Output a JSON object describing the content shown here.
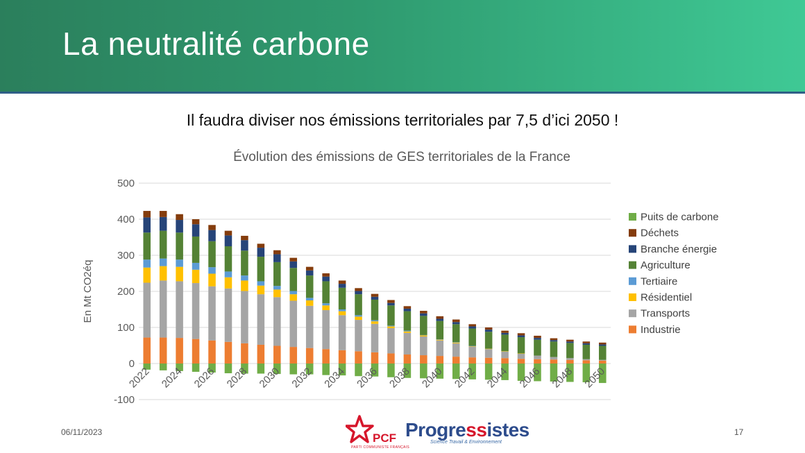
{
  "slide": {
    "title": "La neutralité carbone",
    "subtitle": "Il faudra diviser nos émissions territoriales par 7,5 d’ici 2050 !",
    "date": "06/11/2023",
    "page": "17"
  },
  "logos": {
    "pcf": "PCF",
    "pcf_sub": "PARTI COMMUNISTE FRANÇAIS",
    "progressistes_a": "Progre",
    "progressistes_b": "ss",
    "progressistes_c": "istes",
    "progressistes_sub": "Science Travail & Environnement"
  },
  "chart_data": {
    "type": "bar",
    "stacked": true,
    "title": "Évolution des émissions de GES territoriales de la France",
    "ylabel": "En Mt CO2éq",
    "xlabel": "",
    "ylim": [
      -100,
      500
    ],
    "yticks": [
      -100,
      0,
      100,
      200,
      300,
      400,
      500
    ],
    "grid": true,
    "legend_position": "right",
    "categories": [
      "2022",
      "2023",
      "2024",
      "2025",
      "2026",
      "2027",
      "2028",
      "2029",
      "2030",
      "2031",
      "2032",
      "2033",
      "2034",
      "2035",
      "2036",
      "2037",
      "2038",
      "2039",
      "2040",
      "2041",
      "2042",
      "2043",
      "2044",
      "2045",
      "2046",
      "2047",
      "2048",
      "2049",
      "2050"
    ],
    "xtick_labels": [
      "2022",
      "2024",
      "2026",
      "2028",
      "2030",
      "2032",
      "2034",
      "2036",
      "2038",
      "2040",
      "2042",
      "2044",
      "2046",
      "2048",
      "2050"
    ],
    "series": [
      {
        "name": "Industrie",
        "color": "#ed7d31",
        "values": [
          72,
          72,
          71,
          68,
          64,
          60,
          56,
          52,
          49,
          46,
          43,
          40,
          37,
          34,
          31,
          28,
          25,
          23,
          21,
          19,
          17,
          16,
          15,
          13,
          12,
          11,
          10,
          9,
          8
        ]
      },
      {
        "name": "Transports",
        "color": "#a5a5a5",
        "values": [
          152,
          158,
          157,
          155,
          150,
          148,
          145,
          140,
          135,
          128,
          117,
          108,
          97,
          87,
          79,
          70,
          60,
          52,
          43,
          37,
          30,
          24,
          18,
          14,
          10,
          7,
          5,
          3,
          2
        ]
      },
      {
        "name": "Résidentiel",
        "color": "#ffc000",
        "values": [
          42,
          40,
          40,
          37,
          35,
          31,
          29,
          24,
          21,
          18,
          15,
          13,
          11,
          9,
          7,
          5,
          4,
          3,
          2,
          2,
          1,
          1,
          1,
          1,
          0,
          0,
          0,
          0,
          0
        ]
      },
      {
        "name": "Tertiaire",
        "color": "#5b9bd5",
        "values": [
          22,
          21,
          20,
          19,
          18,
          16,
          14,
          12,
          10,
          9,
          7,
          6,
          5,
          4,
          3,
          2,
          2,
          1,
          1,
          1,
          1,
          0,
          0,
          0,
          0,
          0,
          0,
          0,
          0
        ]
      },
      {
        "name": "Agriculture",
        "color": "#548235",
        "values": [
          75,
          77,
          75,
          73,
          72,
          70,
          69,
          68,
          66,
          64,
          62,
          61,
          60,
          58,
          57,
          56,
          54,
          53,
          51,
          50,
          48,
          47,
          46,
          45,
          44,
          43,
          42,
          40,
          39
        ]
      },
      {
        "name": "Branche énergie",
        "color": "#264478",
        "values": [
          42,
          38,
          35,
          34,
          31,
          30,
          29,
          25,
          22,
          18,
          14,
          13,
          11,
          9,
          8,
          7,
          7,
          7,
          6,
          6,
          6,
          6,
          5,
          5,
          5,
          4,
          4,
          4,
          4
        ]
      },
      {
        "name": "Déchets",
        "color": "#843c0c",
        "values": [
          18,
          17,
          16,
          14,
          14,
          13,
          12,
          11,
          11,
          10,
          10,
          9,
          9,
          8,
          8,
          8,
          7,
          7,
          7,
          7,
          6,
          6,
          6,
          6,
          6,
          5,
          5,
          5,
          5
        ]
      },
      {
        "name": "Puits de carbone",
        "color": "#70ad47",
        "values": [
          -17,
          -19,
          -21,
          -23,
          -25,
          -27,
          -28,
          -28,
          -29,
          -30,
          -30,
          -32,
          -33,
          -35,
          -36,
          -38,
          -40,
          -41,
          -42,
          -43,
          -44,
          -45,
          -46,
          -48,
          -49,
          -50,
          -51,
          -52,
          -54
        ]
      }
    ],
    "legend_order": [
      "Puits de carbone",
      "Déchets",
      "Branche énergie",
      "Agriculture",
      "Tertiaire",
      "Résidentiel",
      "Transports",
      "Industrie"
    ]
  }
}
